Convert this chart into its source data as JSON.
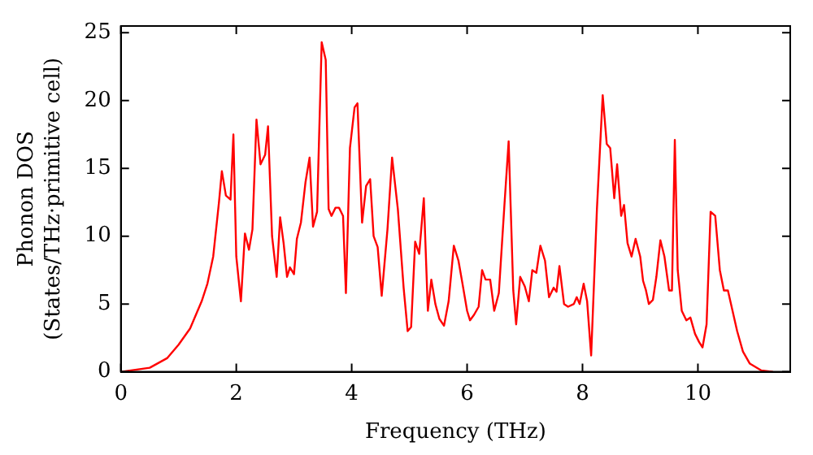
{
  "chart_data": {
    "type": "line",
    "xlabel": "Frequency (THz)",
    "ylabel": "Phonon DOS\n(States/THz·primitive cell)",
    "xlim": [
      0,
      11.6
    ],
    "xticks": [
      0,
      2,
      4,
      6,
      8,
      10
    ],
    "ylim": [
      0,
      25.5
    ],
    "yticks": [
      0,
      5,
      10,
      15,
      20,
      25
    ],
    "grid": false,
    "legend": false,
    "marker": "none",
    "line_style": "solid",
    "series": [
      {
        "color": "#ff0000",
        "x": [
          0,
          0.5,
          0.8,
          1.0,
          1.2,
          1.4,
          1.5,
          1.6,
          1.7,
          1.75,
          1.82,
          1.9,
          1.95,
          2.0,
          2.08,
          2.15,
          2.22,
          2.28,
          2.35,
          2.42,
          2.5,
          2.55,
          2.62,
          2.7,
          2.76,
          2.82,
          2.88,
          2.93,
          3.0,
          3.05,
          3.12,
          3.2,
          3.27,
          3.33,
          3.4,
          3.48,
          3.55,
          3.6,
          3.65,
          3.72,
          3.78,
          3.85,
          3.9,
          3.97,
          4.05,
          4.1,
          4.18,
          4.25,
          4.32,
          4.38,
          4.45,
          4.52,
          4.62,
          4.7,
          4.8,
          4.9,
          4.97,
          5.03,
          5.1,
          5.17,
          5.25,
          5.32,
          5.38,
          5.45,
          5.52,
          5.6,
          5.68,
          5.77,
          5.85,
          5.92,
          6.0,
          6.05,
          6.12,
          6.2,
          6.26,
          6.32,
          6.4,
          6.47,
          6.55,
          6.65,
          6.72,
          6.8,
          6.85,
          6.92,
          7.0,
          7.07,
          7.13,
          7.2,
          7.27,
          7.35,
          7.42,
          7.5,
          7.55,
          7.6,
          7.68,
          7.75,
          7.85,
          7.9,
          7.95,
          8.02,
          8.08,
          8.15,
          8.25,
          8.35,
          8.42,
          8.48,
          8.55,
          8.6,
          8.67,
          8.72,
          8.78,
          8.85,
          8.92,
          9.0,
          9.05,
          9.1,
          9.15,
          9.22,
          9.28,
          9.35,
          9.42,
          9.5,
          9.55,
          9.6,
          9.65,
          9.72,
          9.8,
          9.87,
          9.95,
          10.02,
          10.08,
          10.15,
          10.22,
          10.3,
          10.38,
          10.45,
          10.52,
          10.6,
          10.68,
          10.78,
          10.9,
          11.1,
          11.3
        ],
        "values": [
          0,
          0.3,
          1.0,
          2.0,
          3.2,
          5.2,
          6.5,
          8.5,
          12.5,
          14.8,
          13.0,
          12.7,
          17.5,
          8.5,
          5.2,
          10.2,
          9.0,
          10.5,
          18.6,
          15.3,
          16.0,
          18.1,
          10.0,
          7.0,
          11.4,
          9.5,
          7.0,
          7.7,
          7.2,
          9.8,
          11.0,
          14.0,
          15.8,
          10.7,
          11.8,
          24.3,
          23.0,
          12.0,
          11.5,
          12.1,
          12.1,
          11.5,
          5.8,
          16.5,
          19.5,
          19.8,
          11.0,
          13.7,
          14.2,
          10.0,
          9.2,
          5.6,
          10.5,
          15.8,
          12.0,
          6.2,
          3.0,
          3.3,
          9.6,
          8.7,
          12.8,
          4.5,
          6.8,
          5.0,
          3.9,
          3.4,
          5.2,
          9.3,
          8.2,
          6.5,
          4.5,
          3.8,
          4.2,
          4.8,
          7.5,
          6.8,
          6.8,
          4.5,
          5.8,
          12.5,
          17.0,
          6.0,
          3.5,
          7.0,
          6.3,
          5.2,
          7.5,
          7.3,
          9.3,
          8.2,
          5.5,
          6.2,
          5.9,
          7.8,
          5.0,
          4.8,
          5.0,
          5.5,
          5.0,
          6.5,
          5.2,
          1.2,
          12.0,
          20.4,
          16.8,
          16.5,
          12.8,
          15.3,
          11.5,
          12.3,
          9.5,
          8.5,
          9.8,
          8.5,
          6.7,
          6.0,
          5.0,
          5.3,
          7.0,
          9.7,
          8.5,
          6.0,
          6.0,
          17.1,
          7.5,
          4.5,
          3.8,
          4.0,
          2.8,
          2.2,
          1.8,
          3.5,
          11.8,
          11.5,
          7.5,
          6.0,
          6.0,
          4.5,
          3.0,
          1.5,
          0.6,
          0.1,
          0
        ]
      }
    ]
  }
}
